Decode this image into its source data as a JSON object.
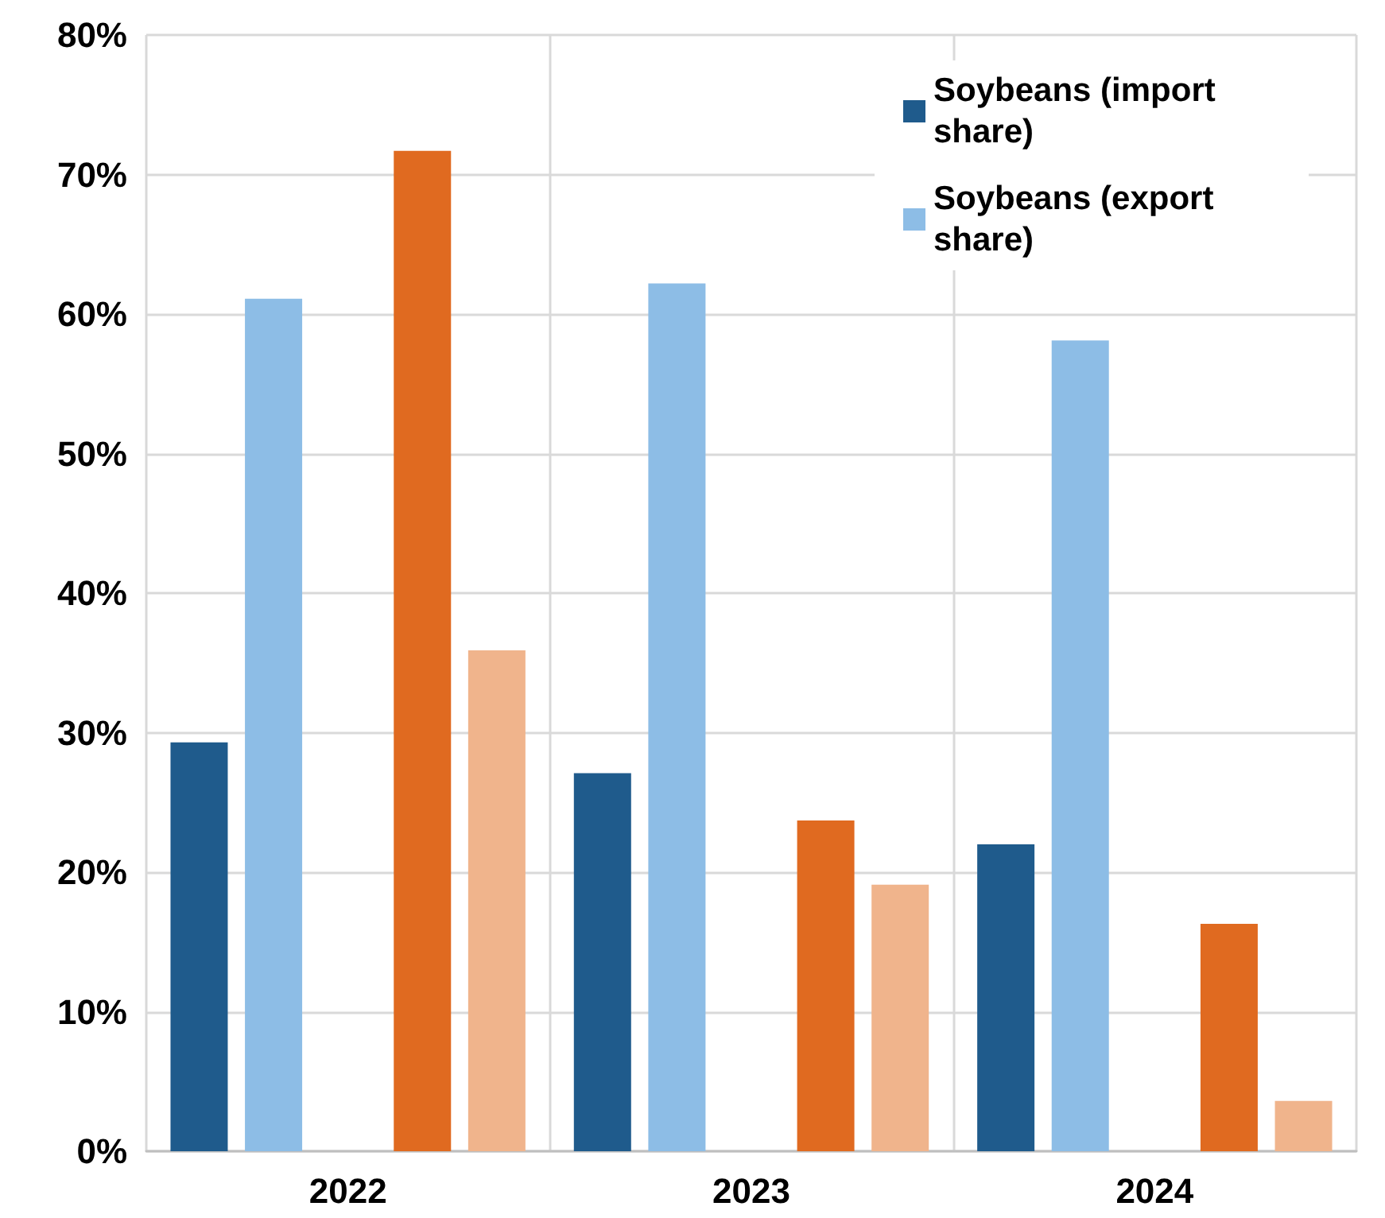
{
  "chart_data": {
    "type": "bar",
    "categories": [
      "2022",
      "2023",
      "2024"
    ],
    "series": [
      {
        "name": "Soybeans (import share)",
        "color": "#1f5b8c",
        "values": [
          29.3,
          27.1,
          22.0
        ]
      },
      {
        "name": "Soybeans (export share)",
        "color": "#8dbde6",
        "values": [
          61.1,
          62.2,
          58.1
        ]
      },
      {
        "color": "#e06a20",
        "values": [
          71.7,
          23.7,
          16.3
        ]
      },
      {
        "color": "#f0b48c",
        "values": [
          35.9,
          19.1,
          3.6
        ]
      }
    ],
    "ylim": [
      0,
      80
    ],
    "yticks": [
      {
        "value": 0,
        "label": "0%"
      },
      {
        "value": 10,
        "label": "10%"
      },
      {
        "value": 20,
        "label": "20%"
      },
      {
        "value": 30,
        "label": "30%"
      },
      {
        "value": 40,
        "label": "40%"
      },
      {
        "value": 50,
        "label": "50%"
      },
      {
        "value": 60,
        "label": "60%"
      },
      {
        "value": 70,
        "label": "70%"
      },
      {
        "value": 80,
        "label": "80%"
      }
    ],
    "grid": true,
    "legend": "top right"
  }
}
